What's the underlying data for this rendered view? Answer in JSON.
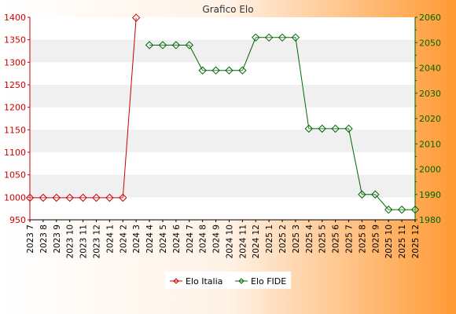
{
  "chart_data": {
    "type": "line",
    "title": "Grafico Elo",
    "categories": [
      "2023 7",
      "2023 8",
      "2023 9",
      "2023 10",
      "2023 11",
      "2023 12",
      "2024 1",
      "2024 2",
      "2024 3",
      "2024 4",
      "2024 5",
      "2024 6",
      "2024 7",
      "2024 8",
      "2024 9",
      "2024 10",
      "2024 11",
      "2024 12",
      "2025 1",
      "2025 2",
      "2025 3",
      "2025 4",
      "2025 5",
      "2025 6",
      "2025 7",
      "2025 8",
      "2025 9",
      "2025 10",
      "2025 11",
      "2025 12"
    ],
    "y_left": {
      "ticks": [
        950,
        1000,
        1050,
        1100,
        1150,
        1200,
        1250,
        1300,
        1350,
        1400
      ],
      "range": [
        950,
        1400
      ],
      "color": "#cc0000"
    },
    "y_right": {
      "ticks": [
        1980,
        1990,
        2000,
        2010,
        2020,
        2030,
        2040,
        2050,
        2060
      ],
      "range": [
        1980,
        2060
      ],
      "color": "#006600"
    },
    "series": [
      {
        "name": "Elo Italia",
        "axis": "left",
        "color": "#cc0000",
        "values": [
          999,
          999,
          999,
          999,
          999,
          999,
          999,
          999,
          1399,
          null,
          null,
          null,
          null,
          null,
          null,
          null,
          null,
          null,
          null,
          null,
          null,
          null,
          null,
          null,
          null,
          null,
          null,
          null,
          null,
          null
        ]
      },
      {
        "name": "Elo FIDE",
        "axis": "right",
        "color": "#006600",
        "values": [
          null,
          null,
          null,
          null,
          null,
          null,
          null,
          null,
          null,
          2049,
          2049,
          2049,
          2049,
          2039,
          2039,
          2039,
          2039,
          2052,
          2052,
          2052,
          2052,
          2016,
          2016,
          2016,
          2016,
          1990,
          1990,
          1984,
          1984,
          1984
        ]
      }
    ],
    "grid": "horizontal-bands",
    "legend": "bottom-center",
    "background_gradient": [
      "#ffffff",
      "#ff9933"
    ]
  }
}
